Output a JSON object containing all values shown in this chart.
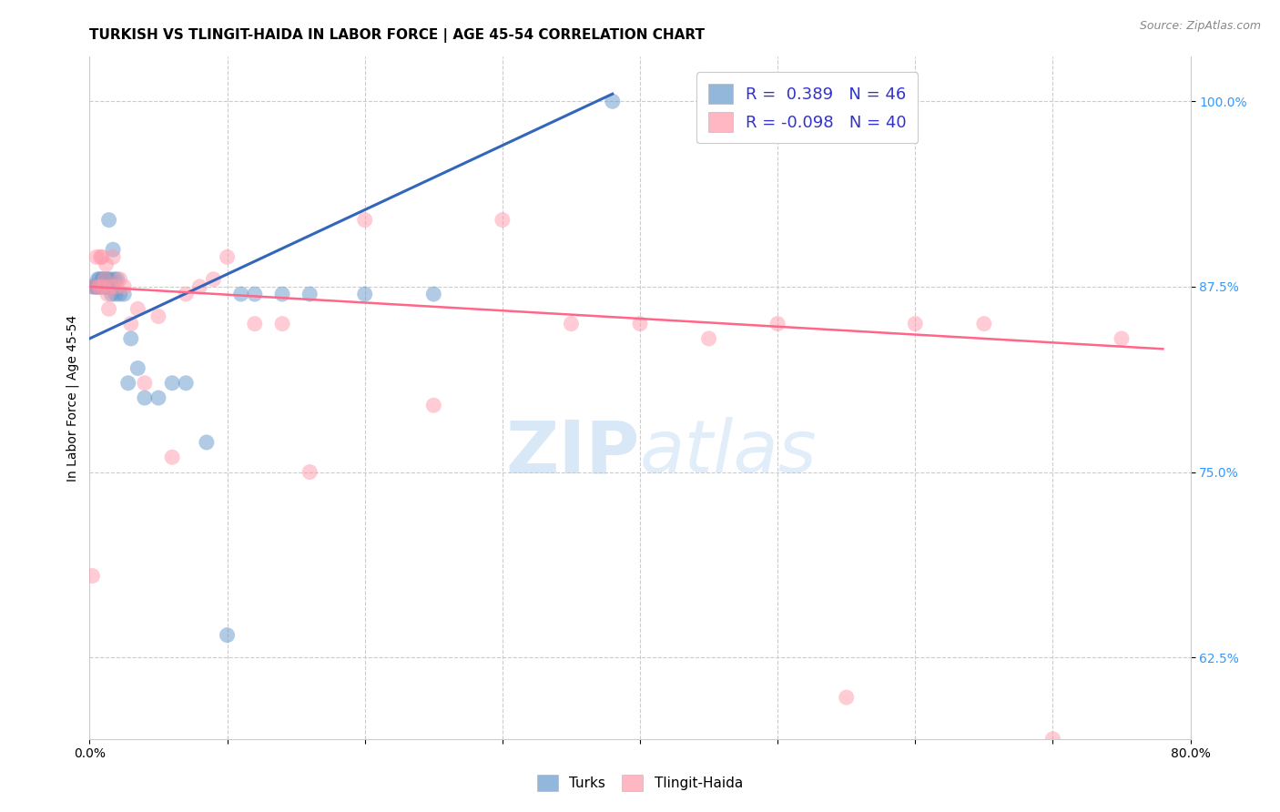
{
  "title": "TURKISH VS TLINGIT-HAIDA IN LABOR FORCE | AGE 45-54 CORRELATION CHART",
  "source": "Source: ZipAtlas.com",
  "ylabel": "In Labor Force | Age 45-54",
  "xlim": [
    0.0,
    0.8
  ],
  "ylim": [
    0.57,
    1.03
  ],
  "x_ticks": [
    0.0,
    0.1,
    0.2,
    0.3,
    0.4,
    0.5,
    0.6,
    0.7,
    0.8
  ],
  "x_tick_labels": [
    "0.0%",
    "",
    "",
    "",
    "",
    "",
    "",
    "",
    "80.0%"
  ],
  "y_ticks": [
    0.625,
    0.75,
    0.875,
    1.0
  ],
  "y_tick_labels": [
    "62.5%",
    "75.0%",
    "87.5%",
    "100.0%"
  ],
  "turks_color": "#6699CC",
  "tlingit_color": "#FF99AA",
  "turks_R": 0.389,
  "turks_N": 46,
  "tlingit_R": -0.098,
  "tlingit_N": 40,
  "turks_scatter_x": [
    0.002,
    0.003,
    0.004,
    0.005,
    0.005,
    0.006,
    0.006,
    0.007,
    0.007,
    0.008,
    0.008,
    0.009,
    0.009,
    0.01,
    0.01,
    0.011,
    0.011,
    0.012,
    0.012,
    0.013,
    0.013,
    0.014,
    0.015,
    0.016,
    0.017,
    0.018,
    0.019,
    0.02,
    0.022,
    0.025,
    0.028,
    0.03,
    0.035,
    0.04,
    0.05,
    0.06,
    0.07,
    0.085,
    0.1,
    0.11,
    0.12,
    0.14,
    0.16,
    0.2,
    0.25,
    0.38
  ],
  "turks_scatter_y": [
    0.875,
    0.875,
    0.875,
    0.875,
    0.875,
    0.875,
    0.88,
    0.875,
    0.88,
    0.875,
    0.875,
    0.88,
    0.875,
    0.88,
    0.875,
    0.88,
    0.875,
    0.88,
    0.875,
    0.88,
    0.875,
    0.92,
    0.88,
    0.87,
    0.9,
    0.88,
    0.87,
    0.88,
    0.87,
    0.87,
    0.81,
    0.84,
    0.82,
    0.8,
    0.8,
    0.81,
    0.81,
    0.77,
    0.64,
    0.87,
    0.87,
    0.87,
    0.87,
    0.87,
    0.87,
    1.0
  ],
  "tlingit_scatter_x": [
    0.002,
    0.003,
    0.005,
    0.007,
    0.008,
    0.009,
    0.01,
    0.011,
    0.012,
    0.013,
    0.014,
    0.015,
    0.017,
    0.019,
    0.022,
    0.025,
    0.03,
    0.035,
    0.04,
    0.05,
    0.06,
    0.07,
    0.08,
    0.09,
    0.1,
    0.12,
    0.14,
    0.16,
    0.2,
    0.25,
    0.3,
    0.35,
    0.4,
    0.45,
    0.5,
    0.55,
    0.6,
    0.65,
    0.7,
    0.75
  ],
  "tlingit_scatter_y": [
    0.68,
    0.875,
    0.895,
    0.875,
    0.895,
    0.895,
    0.875,
    0.88,
    0.89,
    0.87,
    0.86,
    0.875,
    0.895,
    0.875,
    0.88,
    0.875,
    0.85,
    0.86,
    0.81,
    0.855,
    0.76,
    0.87,
    0.875,
    0.88,
    0.895,
    0.85,
    0.85,
    0.75,
    0.92,
    0.795,
    0.92,
    0.85,
    0.85,
    0.84,
    0.85,
    0.598,
    0.85,
    0.85,
    0.57,
    0.84
  ],
  "turks_line_color": "#3366BB",
  "tlingit_line_color": "#FF6688",
  "turks_line_x": [
    0.0,
    0.38
  ],
  "turks_line_y": [
    0.84,
    1.005
  ],
  "tlingit_line_x": [
    0.0,
    0.78
  ],
  "tlingit_line_y": [
    0.875,
    0.833
  ],
  "background_color": "#FFFFFF",
  "grid_color": "#CCCCCC",
  "title_fontsize": 11,
  "label_fontsize": 10,
  "tick_fontsize": 10,
  "legend_fontsize": 13
}
